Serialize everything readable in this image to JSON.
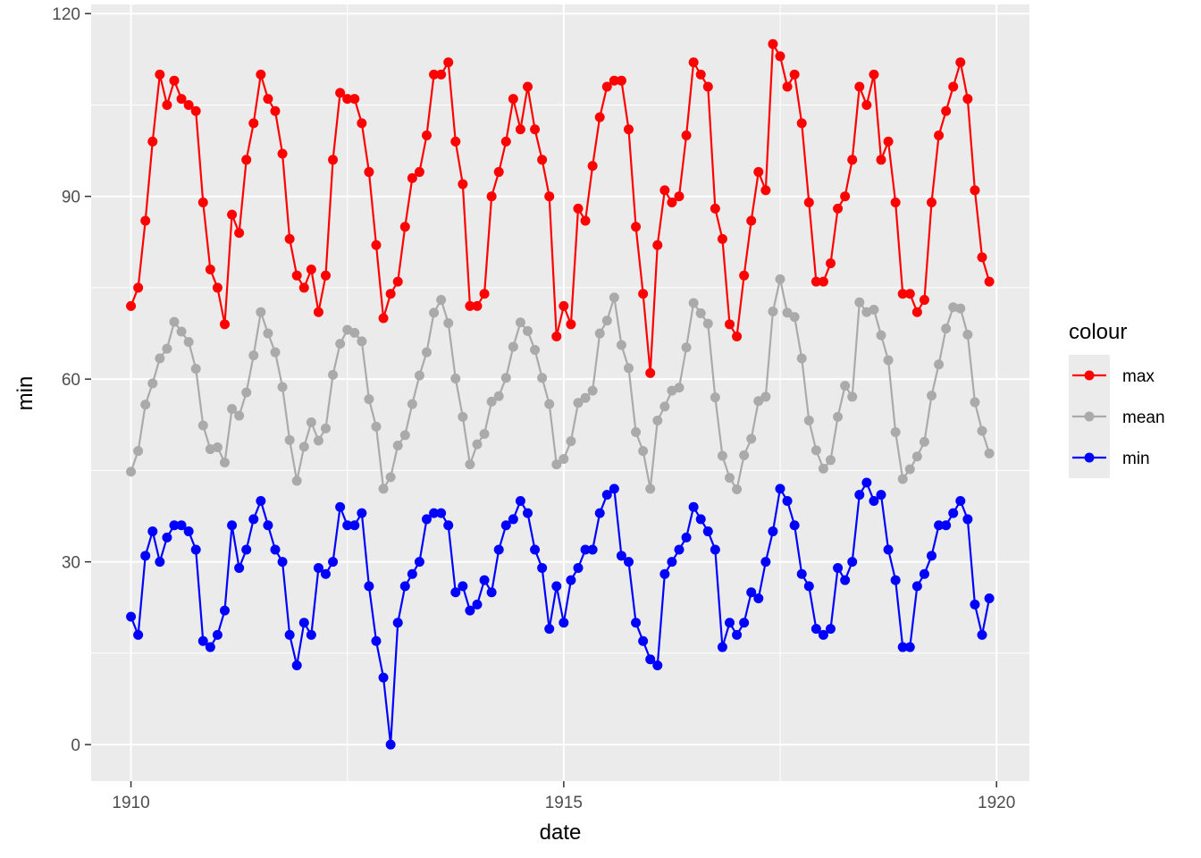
{
  "chart_data": {
    "type": "line",
    "xlabel": "date",
    "ylabel": "min",
    "x_tick_labels": [
      "1910",
      "1915",
      "1920"
    ],
    "x_ticks": [
      1910,
      1915,
      1920
    ],
    "y_tick_labels": [
      "0",
      "30",
      "60",
      "90",
      "120"
    ],
    "y_ticks": [
      0,
      30,
      60,
      90,
      120
    ],
    "xlim": [
      1909.54,
      1920.38
    ],
    "ylim": [
      -6,
      121.5
    ],
    "grid": true,
    "legend": {
      "title": "colour",
      "position": "right"
    },
    "x_start": 1910.0,
    "x_step": 0.08333,
    "series": [
      {
        "name": "max",
        "color": "#ff0000",
        "values": [
          72,
          75,
          86,
          99,
          110,
          105,
          109,
          106,
          105,
          104,
          89,
          78,
          75,
          69,
          87,
          84,
          96,
          102,
          110,
          106,
          104,
          97,
          83,
          77,
          75,
          78,
          71,
          77,
          96,
          107,
          106,
          106,
          102,
          94,
          82,
          70,
          74,
          76,
          85,
          93,
          94,
          100,
          110,
          110,
          112,
          99,
          92,
          72,
          72,
          74,
          90,
          94,
          99,
          106,
          101,
          108,
          101,
          96,
          90,
          67,
          72,
          69,
          88,
          86,
          95,
          103,
          108,
          109,
          109,
          101,
          85,
          74,
          61,
          82,
          91,
          89,
          90,
          100,
          112,
          110,
          108,
          88,
          83,
          69,
          67,
          77,
          86,
          94,
          91,
          115,
          113,
          108,
          110,
          102,
          89,
          76,
          76,
          79,
          88,
          90,
          96,
          108,
          105,
          110,
          96,
          99,
          89,
          74,
          74,
          71,
          73,
          89,
          100,
          104,
          108,
          112,
          106,
          91,
          80,
          76
        ]
      },
      {
        "name": "mean",
        "color": "#aaaaaa",
        "values": [
          44.8,
          48.2,
          55.8,
          59.3,
          63.4,
          65.0,
          69.4,
          67.8,
          66.1,
          61.7,
          52.4,
          48.5,
          48.8,
          46.3,
          55.1,
          54.0,
          57.8,
          63.9,
          71.0,
          67.5,
          64.4,
          58.7,
          50.0,
          43.3,
          48.9,
          52.9,
          49.9,
          51.9,
          60.7,
          65.8,
          68.1,
          67.6,
          66.2,
          56.7,
          52.2,
          42.0,
          43.9,
          49.1,
          50.8,
          55.9,
          60.6,
          64.4,
          70.9,
          73.0,
          69.2,
          60.1,
          53.8,
          46.0,
          49.3,
          51.0,
          56.3,
          57.2,
          60.2,
          65.3,
          69.3,
          67.9,
          64.8,
          60.2,
          55.9,
          46.0,
          46.9,
          49.8,
          56.1,
          56.9,
          58.1,
          67.5,
          69.6,
          73.4,
          65.6,
          61.8,
          51.3,
          48.2,
          42.0,
          53.2,
          55.5,
          58.1,
          58.6,
          65.2,
          72.5,
          70.8,
          69.1,
          57.0,
          47.4,
          43.8,
          41.9,
          47.5,
          50.2,
          56.4,
          57.1,
          71.1,
          76.4,
          70.9,
          70.2,
          63.4,
          53.2,
          48.3,
          45.3,
          46.7,
          53.8,
          58.9,
          57.1,
          72.6,
          71.0,
          71.4,
          67.2,
          63.1,
          51.3,
          43.6,
          45.2,
          47.3,
          49.7,
          57.3,
          62.4,
          68.3,
          71.8,
          71.6,
          67.3,
          56.2,
          51.5,
          47.8
        ]
      },
      {
        "name": "min",
        "color": "#0000ff",
        "values": [
          21,
          18,
          31,
          35,
          30,
          34,
          36,
          36,
          35,
          32,
          17,
          16,
          18,
          22,
          36,
          29,
          32,
          37,
          40,
          36,
          32,
          30,
          18,
          13,
          20,
          18,
          29,
          28,
          30,
          39,
          36,
          36,
          38,
          26,
          17,
          11,
          0,
          20,
          26,
          28,
          30,
          37,
          38,
          38,
          36,
          25,
          26,
          22,
          23,
          27,
          25,
          32,
          36,
          37,
          40,
          38,
          32,
          29,
          19,
          26,
          20,
          27,
          29,
          32,
          32,
          38,
          41,
          42,
          31,
          30,
          20,
          17,
          14,
          13,
          28,
          30,
          32,
          34,
          39,
          37,
          35,
          32,
          16,
          20,
          18,
          20,
          25,
          24,
          30,
          35,
          42,
          40,
          36,
          28,
          26,
          19,
          18,
          19,
          29,
          27,
          30,
          41,
          43,
          40,
          41,
          32,
          27,
          16,
          16,
          26,
          28,
          31,
          36,
          36,
          38,
          40,
          37,
          23,
          18,
          24
        ]
      }
    ]
  }
}
